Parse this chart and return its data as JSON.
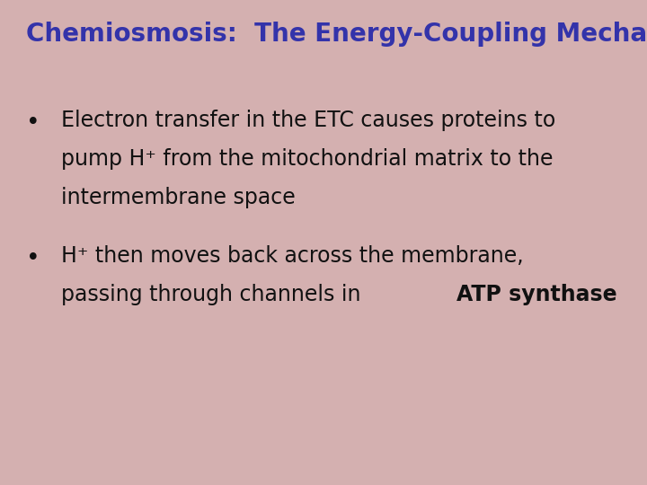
{
  "title": "Chemiosmosis:  The Energy-Coupling Mechanism",
  "title_color": "#3333AA",
  "title_fontsize": 20,
  "background_color": "#D4B0B0",
  "bullet1_line1": "Electron transfer in the ETC causes proteins to",
  "bullet1_line2": "pump H⁺ from the mitochondrial matrix to the",
  "bullet1_line3": "intermembrane space",
  "bullet2_line1": "H⁺ then moves back across the membrane,",
  "bullet2_line2_normal": "passing through channels in ",
  "bullet2_line2_bold": "ATP synthase",
  "bullet_color": "#111111",
  "bullet_fontsize": 17,
  "bullet_marker": "•",
  "figsize": [
    7.2,
    5.4
  ],
  "dpi": 100
}
